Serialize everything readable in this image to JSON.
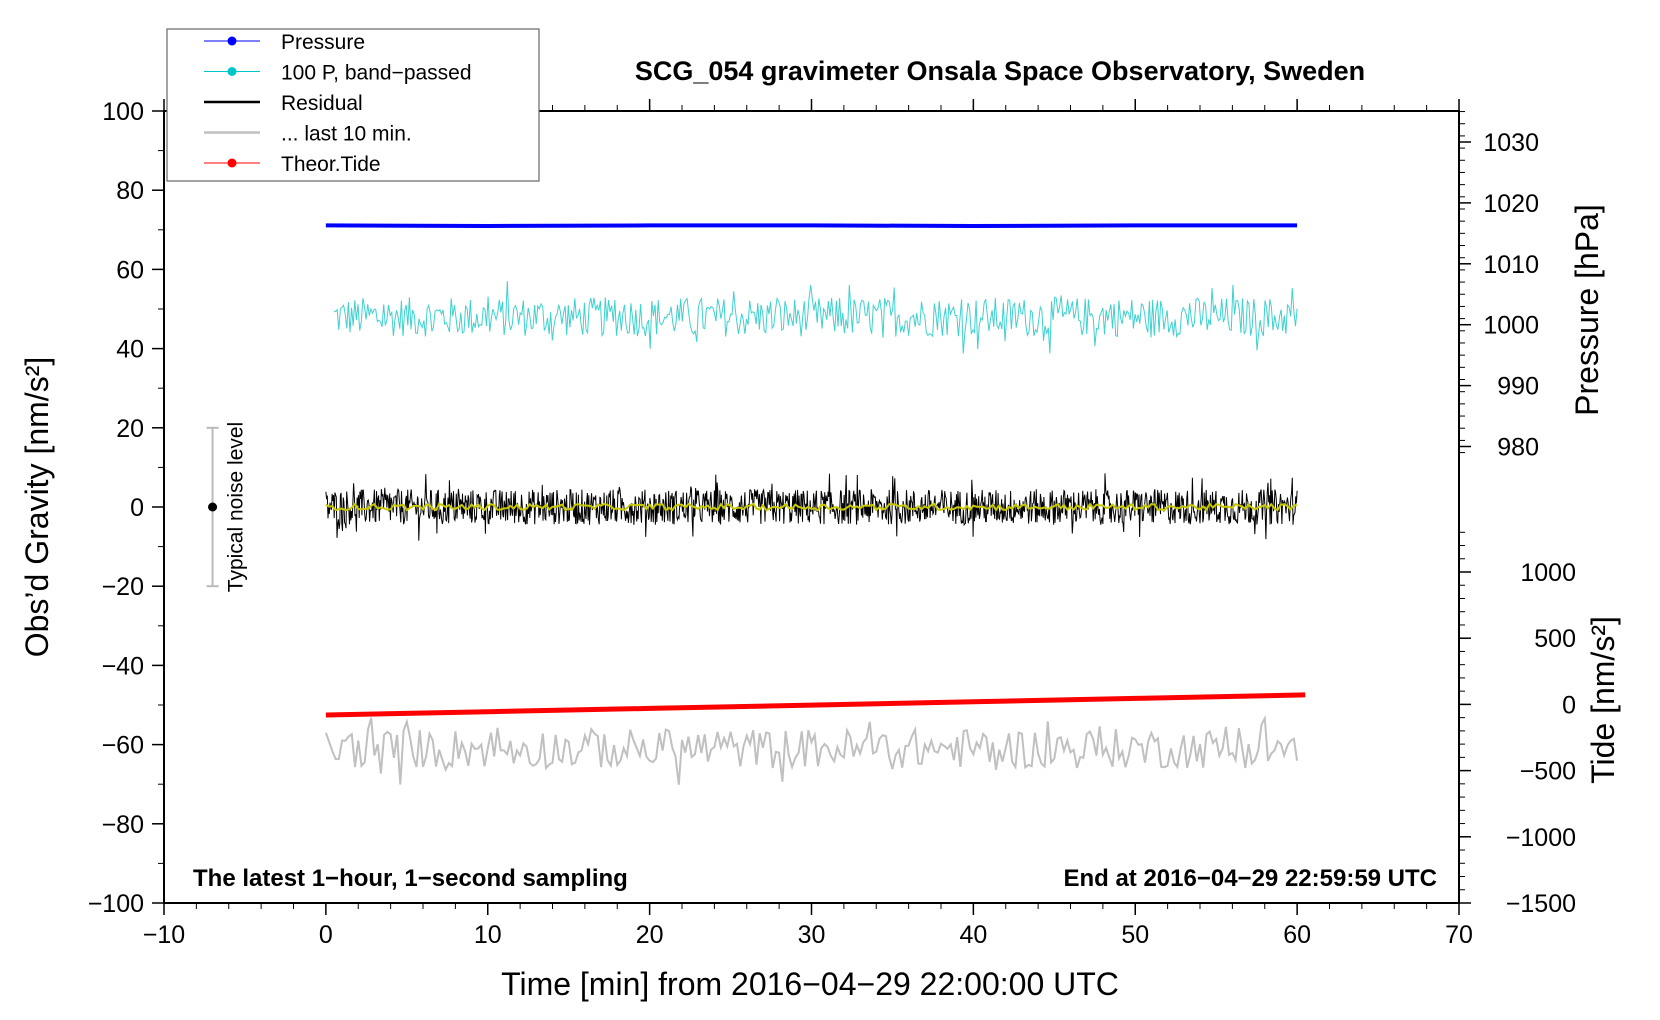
{
  "chart_data": {
    "type": "line",
    "title": "SCG_054 gravimeter Onsala Space Observatory, Sweden",
    "xlabel": "Time [min] from 2016−04−29 22:00:00 UTC",
    "ylabel_left": "Obs’d Gravity [nm/s²]",
    "ylabel_right_top": "Pressure [hPa]",
    "ylabel_right_bottom": "Tide [nm/s²]",
    "xlim": [
      -10,
      70
    ],
    "ylim_left": [
      -100,
      100
    ],
    "x_ticks": [
      "−10",
      "0",
      "10",
      "20",
      "30",
      "40",
      "50",
      "60",
      "70"
    ],
    "y_ticks_left": [
      "100",
      "80",
      "60",
      "40",
      "20",
      "0",
      "−20",
      "−40",
      "−60",
      "−80",
      "−100"
    ],
    "pressure_ticks": [
      "1030",
      "1020",
      "1010",
      "1000",
      "990",
      "980"
    ],
    "tide_ticks": [
      "1000",
      "500",
      "0",
      "−500",
      "−1000",
      "−1500"
    ],
    "legend": {
      "placement": "top-left",
      "entries": [
        {
          "label": "Pressure",
          "color": "#0000ff",
          "marker": true
        },
        {
          "label": "100 P, band−passed",
          "color": "#00c8c8",
          "marker": true
        },
        {
          "label": "Residual",
          "color": "#000000",
          "marker": false
        },
        {
          "label": "... last 10 min.",
          "color": "#c0c0c0",
          "marker": false
        },
        {
          "label": "Theor.Tide",
          "color": "#ff0000",
          "marker": true
        }
      ]
    },
    "annotations": {
      "left_note": "The latest 1−hour, 1−second sampling",
      "right_note": "End at 2016−04−29 22:59:59 UTC",
      "noise_label": "Typical noise level"
    },
    "noise_level": {
      "x": -7,
      "center": 0,
      "range": [
        -20,
        20
      ]
    },
    "series": [
      {
        "name": "Pressure",
        "unit": "hPa",
        "axis": "pressure",
        "x": [
          0,
          10,
          20,
          30,
          40,
          50,
          60
        ],
        "values": [
          1016.3,
          1016.2,
          1016.3,
          1016.3,
          1016.2,
          1016.3,
          1016.3
        ],
        "color": "#0000ff"
      },
      {
        "name": "100 P, band-passed",
        "axis": "left",
        "x_range": [
          0.5,
          60
        ],
        "mean": 48,
        "amplitude": 5,
        "color": "#40d0d0"
      },
      {
        "name": "Residual",
        "axis": "left",
        "x_range": [
          0,
          60
        ],
        "mean": 0,
        "amplitude": 4.5,
        "color": "#000000"
      },
      {
        "name": "Residual smoothed",
        "axis": "left",
        "x_range": [
          0,
          60
        ],
        "mean": 0,
        "amplitude": 0.8,
        "color": "#c8c800"
      },
      {
        "name": "... last 10 min.",
        "axis": "left",
        "x_range": [
          0,
          60
        ],
        "mean": -61,
        "amplitude": 5,
        "color": "#c0c0c0"
      },
      {
        "name": "Theor.Tide",
        "unit": "nm/s²",
        "axis": "tide",
        "x": [
          0,
          10,
          20,
          30,
          40,
          50,
          60.5
        ],
        "values": [
          -80,
          -55,
          -30,
          -5,
          20,
          45,
          72
        ],
        "color": "#ff0000"
      }
    ]
  }
}
